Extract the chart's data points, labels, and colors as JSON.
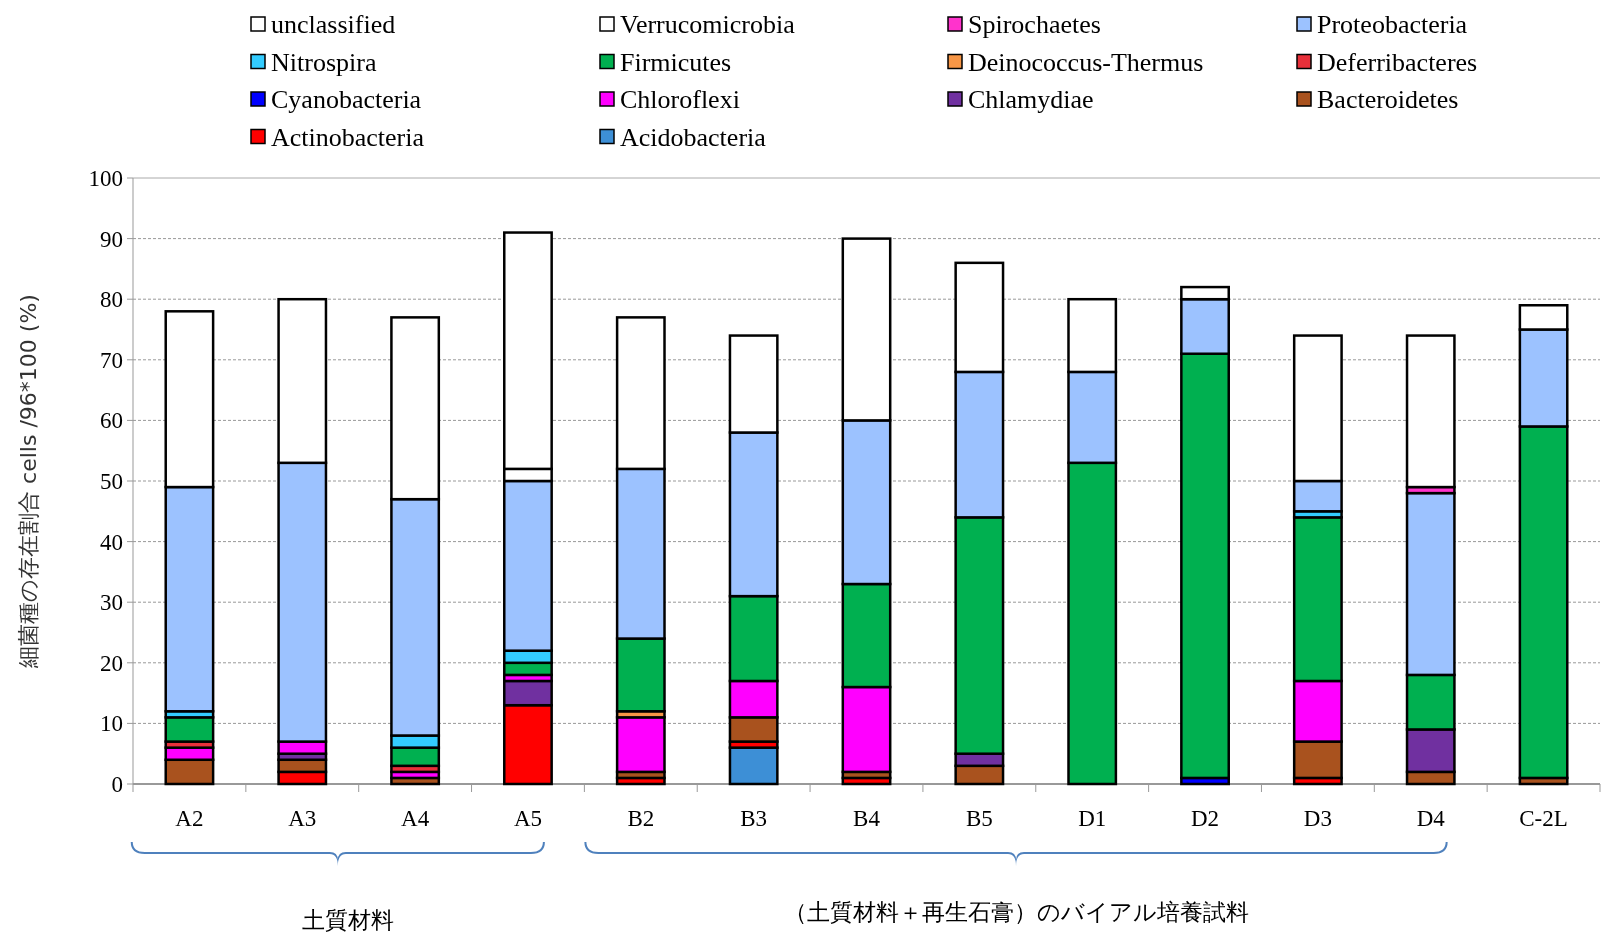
{
  "chart_data": {
    "type": "bar",
    "stacked": true,
    "ylabel": "細菌種の存在割合 cells /96*100 (%)",
    "categories": [
      "A2",
      "A3",
      "A4",
      "A5",
      "B2",
      "B3",
      "B4",
      "B5",
      "D1",
      "D2",
      "D3",
      "D4",
      "C-2L"
    ],
    "ylim": [
      0,
      100
    ],
    "yticks": [
      0,
      10,
      20,
      30,
      40,
      50,
      60,
      70,
      80,
      90,
      100
    ],
    "grid": "y",
    "legend": "top",
    "series": [
      {
        "name": "Acidobacteria",
        "color": "#3d8fd6",
        "values": [
          0,
          0,
          0,
          0,
          0,
          6,
          0,
          0,
          0,
          0,
          0,
          0,
          0
        ]
      },
      {
        "name": "Actinobacteria",
        "color": "#ff0000",
        "values": [
          0,
          2,
          0,
          13,
          1,
          1,
          1,
          0,
          0,
          0,
          1,
          0,
          0
        ]
      },
      {
        "name": "Bacteroidetes",
        "color": "#a9521e",
        "values": [
          4,
          2,
          1,
          0,
          1,
          4,
          1,
          3,
          0,
          0,
          6,
          2,
          1
        ]
      },
      {
        "name": "Chlamydiae",
        "color": "#7030a0",
        "values": [
          0,
          1,
          0,
          4,
          0,
          0,
          0,
          2,
          0,
          0,
          0,
          7,
          0
        ]
      },
      {
        "name": "Chloroflexi",
        "color": "#ff00ff",
        "values": [
          2,
          2,
          1,
          1,
          9,
          6,
          14,
          0,
          0,
          0,
          10,
          0,
          0
        ]
      },
      {
        "name": "Cyanobacteria",
        "color": "#0000ff",
        "values": [
          0,
          0,
          0,
          0,
          0,
          0,
          0,
          0,
          0,
          1,
          0,
          0,
          0
        ]
      },
      {
        "name": "Deferribacteres",
        "color": "#e8303a",
        "values": [
          1,
          0,
          1,
          0,
          0,
          0,
          0,
          0,
          0,
          0,
          0,
          0,
          0
        ]
      },
      {
        "name": "Deinococcus-Thermus",
        "color": "#f79646",
        "values": [
          0,
          0,
          0,
          0,
          1,
          0,
          0,
          0,
          0,
          0,
          0,
          0,
          0
        ]
      },
      {
        "name": "Firmicutes",
        "color": "#00b050",
        "values": [
          4,
          0,
          3,
          2,
          12,
          14,
          17,
          39,
          53,
          70,
          27,
          9,
          58
        ]
      },
      {
        "name": "Nitrospira",
        "color": "#33ccff",
        "values": [
          1,
          0,
          2,
          2,
          0,
          0,
          0,
          0,
          0,
          0,
          1,
          0,
          0
        ]
      },
      {
        "name": "Proteobacteria",
        "color": "#9cc2ff",
        "values": [
          37,
          46,
          39,
          28,
          28,
          27,
          27,
          24,
          15,
          9,
          5,
          30,
          16
        ]
      },
      {
        "name": "Spirochaetes",
        "color": "#ff33cc",
        "values": [
          0,
          0,
          0,
          0,
          0,
          0,
          0,
          0,
          0,
          0,
          0,
          1,
          0
        ]
      },
      {
        "name": "Verrucomicrobia",
        "color": "#ffffff",
        "values": [
          0,
          0,
          0,
          2,
          0,
          0,
          0,
          0,
          0,
          0,
          0,
          0,
          0
        ]
      },
      {
        "name": "unclassified",
        "color": "#ffffff",
        "values": [
          29,
          27,
          30,
          39,
          25,
          16,
          30,
          18,
          12,
          2,
          24,
          25,
          4
        ]
      }
    ],
    "annotations": [
      "土質材料",
      "（土質材料＋再生石膏）のバイアル培養試料"
    ]
  }
}
